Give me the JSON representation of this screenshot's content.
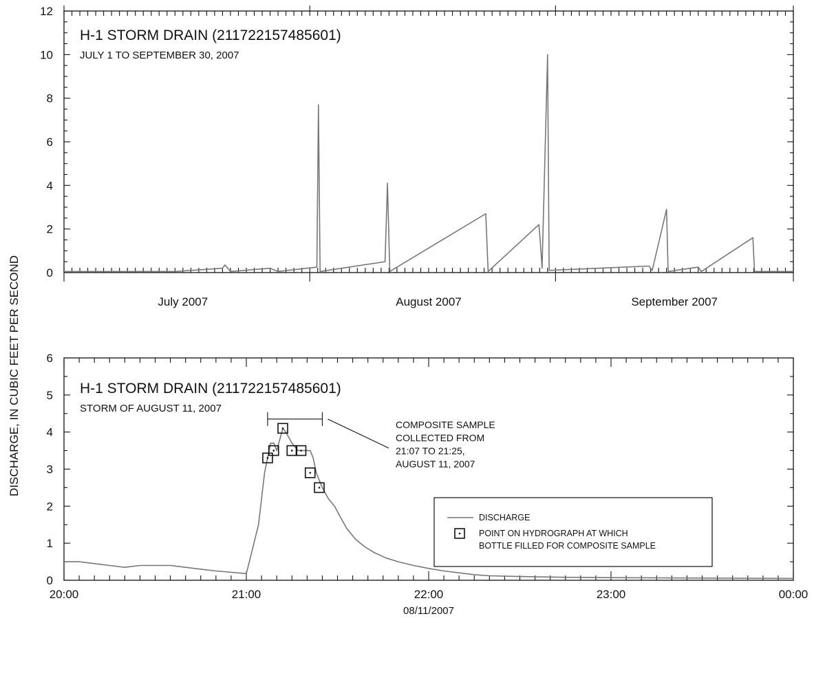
{
  "figure": {
    "ylabel": "DISCHARGE, IN CUBIC FEET PER SECOND",
    "xlabel_bottom": "08/11/2007"
  },
  "chart_data": [
    {
      "type": "line",
      "title": "H-1 STORM DRAIN (211722157485601)",
      "subtitle": "JULY 1 TO SEPTEMBER 30, 2007",
      "ylim": [
        0,
        12
      ],
      "xlim": [
        "2007-07-01",
        "2007-10-01"
      ],
      "ytick_labels": [
        "0",
        "2",
        "4",
        "6",
        "8",
        "10",
        "12"
      ],
      "xtick_labels": [
        {
          "label": "July 2007",
          "date": "2007-07-16"
        },
        {
          "label": "August 2007",
          "date": "2007-08-16"
        },
        {
          "label": "September 2007",
          "date": "2007-09-16"
        }
      ],
      "series": [
        {
          "color": "#777777",
          "points": [
            [
              "2007-07-01",
              0.05
            ],
            [
              "2007-07-03",
              0.05
            ],
            [
              "2007-07-15",
              0.05
            ],
            [
              "2007-07-21",
              0.2
            ],
            [
              "2007-07-21.3",
              0.35
            ],
            [
              "2007-07-22",
              0.05
            ],
            [
              "2007-07-27",
              0.2
            ],
            [
              "2007-07-28",
              0.05
            ],
            [
              "2007-08-01.9",
              0.25
            ],
            [
              "2007-08-02.1",
              7.7
            ],
            [
              "2007-08-02.3",
              0.05
            ],
            [
              "2007-08-10.5",
              0.5
            ],
            [
              "2007-08-10.8",
              4.1
            ],
            [
              "2007-08-11.1",
              0.05
            ],
            [
              "2007-08-23.2",
              2.7
            ],
            [
              "2007-08-23.5",
              0.05
            ],
            [
              "2007-08-29.9",
              2.2
            ],
            [
              "2007-08-30.1",
              1.3
            ],
            [
              "2007-08-30.3",
              0.2
            ],
            [
              "2007-08-31.0",
              10.0
            ],
            [
              "2007-08-31.2",
              0.1
            ],
            [
              "2007-09-12.8",
              0.3
            ],
            [
              "2007-09-13.2",
              0.1
            ],
            [
              "2007-09-15.0",
              2.9
            ],
            [
              "2007-09-15.2",
              0.05
            ],
            [
              "2007-09-19.0",
              0.25
            ],
            [
              "2007-09-19.4",
              0.05
            ],
            [
              "2007-09-25.9",
              1.6
            ],
            [
              "2007-09-26.1",
              0.05
            ],
            [
              "2007-10-01",
              0.05
            ]
          ]
        }
      ]
    },
    {
      "type": "line",
      "title": "H-1 STORM DRAIN (211722157485601)",
      "subtitle": "STORM OF AUGUST 11, 2007",
      "ylim": [
        0,
        6
      ],
      "xlim": [
        "20:00",
        "00:00"
      ],
      "ytick_labels": [
        "0",
        "1",
        "2",
        "3",
        "4",
        "5",
        "6"
      ],
      "xtick_labels": [
        "20:00",
        "21:00",
        "22:00",
        "23:00",
        "00:00"
      ],
      "series": [
        {
          "name": "DISCHARGE",
          "color": "#777777",
          "points": [
            [
              "20:00",
              0.5
            ],
            [
              "20:05",
              0.5
            ],
            [
              "20:10",
              0.45
            ],
            [
              "20:15",
              0.4
            ],
            [
              "20:20",
              0.35
            ],
            [
              "20:25",
              0.4
            ],
            [
              "20:35",
              0.4
            ],
            [
              "20:40",
              0.35
            ],
            [
              "20:45",
              0.3
            ],
            [
              "20:50",
              0.25
            ],
            [
              "21:00",
              0.18
            ],
            [
              "21:00",
              0.18
            ],
            [
              "21:00",
              0.18
            ],
            [
              "21:01",
              0.5
            ],
            [
              "21:04",
              1.5
            ],
            [
              "21:05",
              2.2
            ],
            [
              "21:06",
              2.9
            ],
            [
              "21:07",
              3.3
            ],
            [
              "21:08",
              3.7
            ],
            [
              "21:09",
              3.7
            ],
            [
              "21:10",
              3.5
            ],
            [
              "21:11",
              3.8
            ],
            [
              "21:12",
              4.1
            ],
            [
              "21:13",
              4.0
            ],
            [
              "21:15",
              3.7
            ],
            [
              "21:17",
              3.5
            ],
            [
              "21:19",
              3.5
            ],
            [
              "21:21",
              3.5
            ],
            [
              "21:22",
              3.3
            ],
            [
              "21:23",
              2.9
            ],
            [
              "21:24",
              2.7
            ],
            [
              "21:25",
              2.5
            ],
            [
              "21:27",
              2.2
            ],
            [
              "21:29",
              2.0
            ],
            [
              "21:31",
              1.7
            ],
            [
              "21:33",
              1.4
            ],
            [
              "21:36",
              1.1
            ],
            [
              "21:39",
              0.9
            ],
            [
              "21:42",
              0.75
            ],
            [
              "21:46",
              0.6
            ],
            [
              "21:50",
              0.5
            ],
            [
              "21:55",
              0.4
            ],
            [
              "22:00",
              0.32
            ],
            [
              "22:05",
              0.25
            ],
            [
              "22:10",
              0.2
            ],
            [
              "22:15",
              0.15
            ],
            [
              "22:20",
              0.12
            ],
            [
              "22:30",
              0.1
            ],
            [
              "22:45",
              0.08
            ],
            [
              "23:00",
              0.07
            ],
            [
              "23:30",
              0.06
            ],
            [
              "00:00",
              0.05
            ]
          ]
        },
        {
          "name": "POINT ON HYDROGRAPH AT WHICH BOTTLE FILLED FOR COMPOSITE SAMPLE",
          "type": "scatter",
          "marker": "square",
          "points": [
            [
              "21:07",
              3.3
            ],
            [
              "21:09",
              3.5
            ],
            [
              "21:12",
              4.1
            ],
            [
              "21:15",
              3.5
            ],
            [
              "21:18",
              3.5
            ],
            [
              "21:21",
              2.9
            ],
            [
              "21:24",
              2.5
            ]
          ]
        }
      ],
      "annotation": {
        "lines": [
          "COMPOSITE SAMPLE",
          "COLLECTED FROM",
          "21:07 TO 21:25,",
          "AUGUST 11, 2007"
        ],
        "span": [
          "21:07",
          "21:25"
        ],
        "y": 4.35
      },
      "legend": {
        "placement": "right",
        "items": [
          {
            "label": "DISCHARGE"
          },
          {
            "label_lines": [
              "POINT ON HYDROGRAPH AT WHICH",
              "BOTTLE FILLED FOR COMPOSITE SAMPLE"
            ]
          }
        ]
      }
    }
  ]
}
